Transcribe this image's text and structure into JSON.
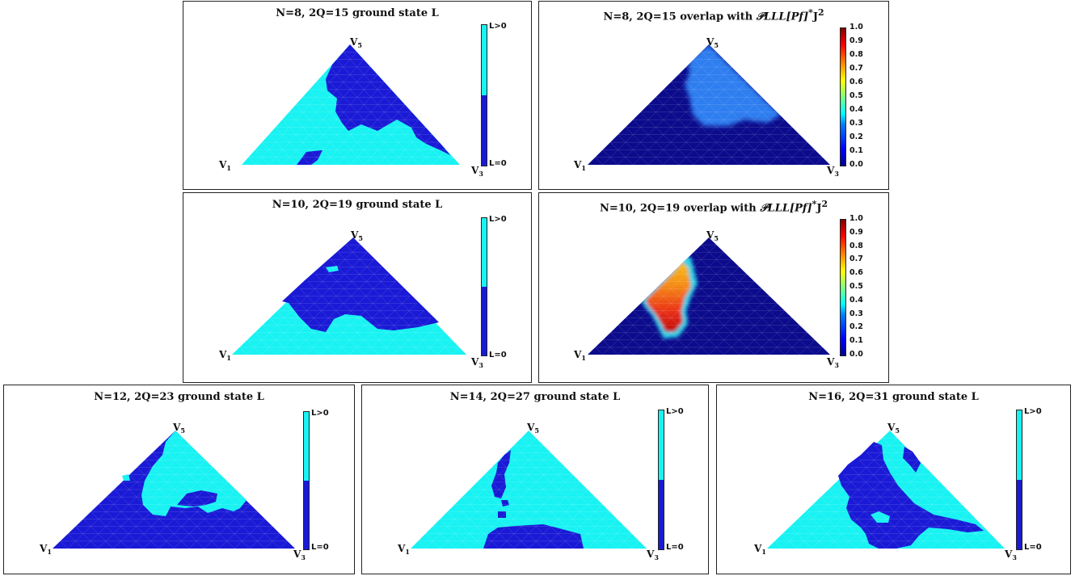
{
  "colors": {
    "L_positive": "#19f2f2",
    "L_zero": "#1a1ad6",
    "overlap_low": "#0b0b8c"
  },
  "vertex_labels": {
    "v1": "V",
    "v1_sub": "1",
    "v3": "V",
    "v3_sub": "3",
    "v5": "V",
    "v5_sub": "5"
  },
  "colorbar_discrete": {
    "top_label": "L>0",
    "bottom_label": "L=0"
  },
  "colorbar_continuous": {
    "ticks": [
      "1.0",
      "0.9",
      "0.8",
      "0.7",
      "0.6",
      "0.5",
      "0.4",
      "0.3",
      "0.2",
      "0.1",
      "0.0"
    ]
  },
  "chart_data": [
    {
      "type": "heatmap",
      "id": "p1",
      "title_main": "N=8, 2Q=15 ground state L",
      "title_math": "",
      "title_sup": "",
      "colorbar": "discrete"
    },
    {
      "type": "heatmap",
      "id": "p2",
      "title_main": "N=8, 2Q=15 overlap with ",
      "title_math": "𝒫LLL[Pf]",
      "title_sup": "*",
      "title_tail": "J",
      "title_tail_sup": "2",
      "colorbar": "continuous",
      "range": [
        0,
        1
      ],
      "max_overlap": 0.3
    },
    {
      "type": "heatmap",
      "id": "p3",
      "title_main": "N=10, 2Q=19 ground state L",
      "title_math": "",
      "colorbar": "discrete"
    },
    {
      "type": "heatmap",
      "id": "p4",
      "title_main": "N=10, 2Q=19 overlap with ",
      "title_math": "𝒫LLL[Pf]",
      "title_sup": "*",
      "title_tail": "J",
      "title_tail_sup": "2",
      "colorbar": "continuous",
      "range": [
        0,
        1
      ],
      "max_overlap": 0.8
    },
    {
      "type": "heatmap",
      "id": "p5",
      "title_main": "N=12, 2Q=23 ground state L",
      "title_math": "",
      "colorbar": "discrete"
    },
    {
      "type": "heatmap",
      "id": "p6",
      "title_main": "N=14, 2Q=27 ground state L",
      "title_math": "",
      "colorbar": "discrete"
    },
    {
      "type": "heatmap",
      "id": "p7",
      "title_main": "N=16, 2Q=31 ground state L",
      "title_math": "",
      "colorbar": "discrete"
    }
  ]
}
